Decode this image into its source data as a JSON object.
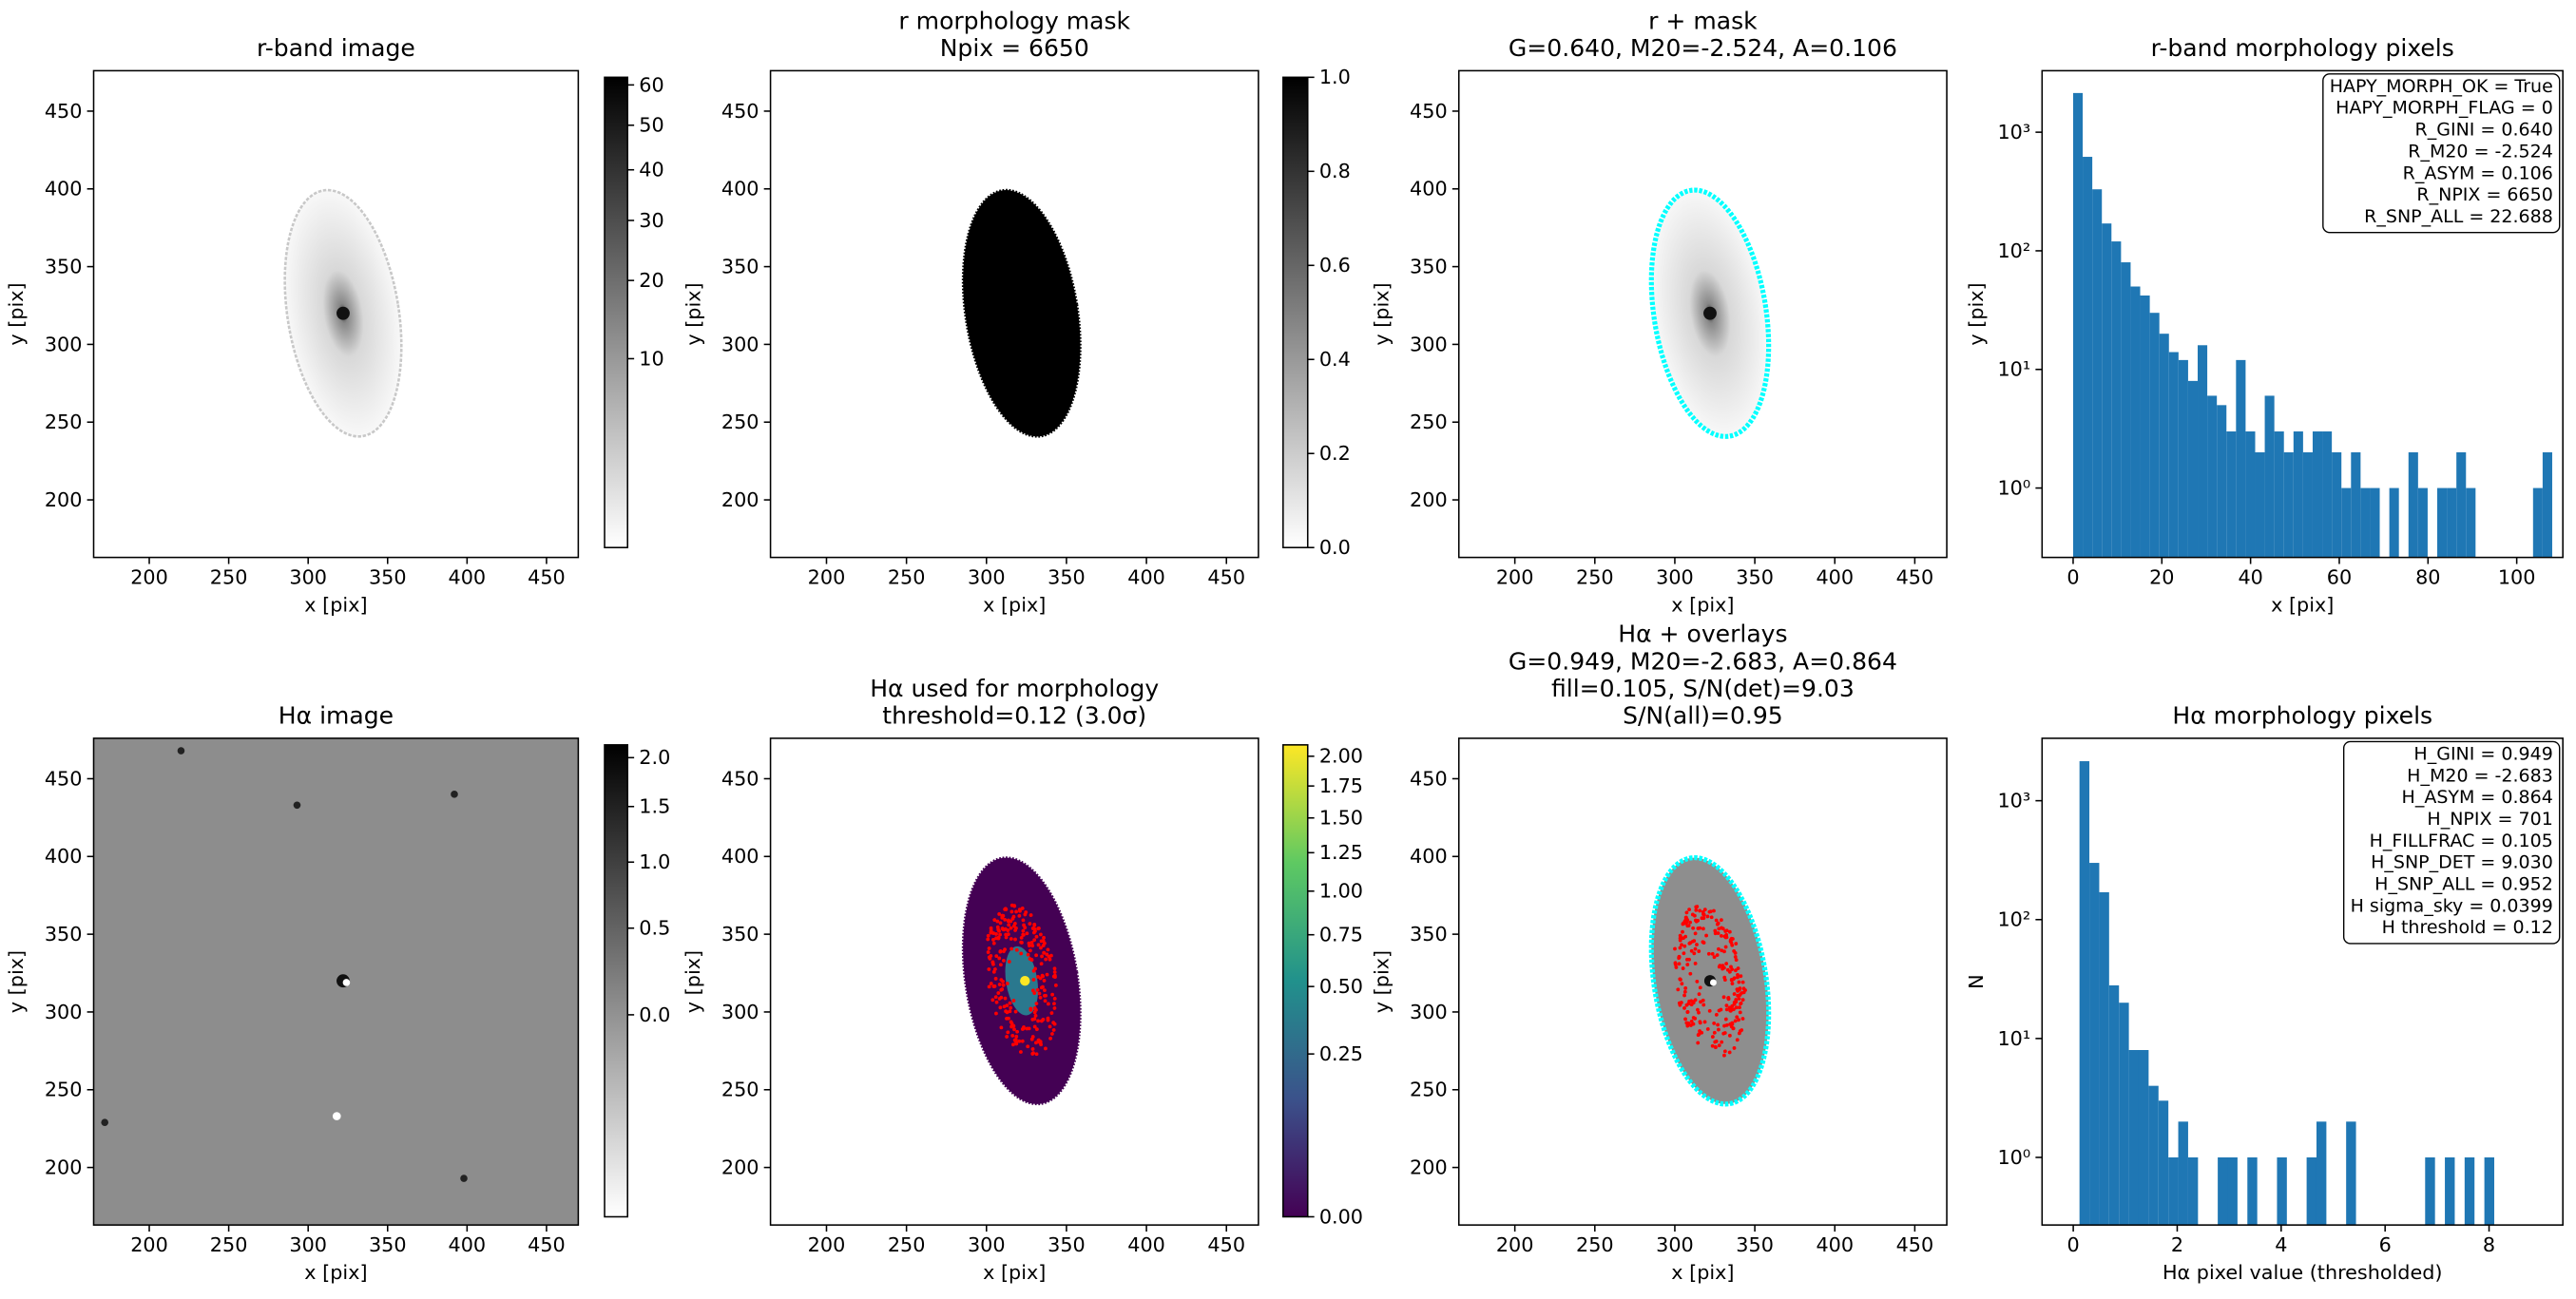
{
  "chart_data": [
    {
      "type": "image",
      "title": [
        "r-band image"
      ],
      "xlabel": "x [pix]",
      "ylabel": "y [pix]",
      "xlim": [
        165,
        470
      ],
      "ylim": [
        163,
        476
      ],
      "xticks": [
        200,
        250,
        300,
        350,
        400,
        450
      ],
      "yticks": [
        200,
        250,
        300,
        350,
        400,
        450
      ],
      "cmap": "gray_r",
      "cscale": "sqrt",
      "clim": [
        0,
        62
      ],
      "cticks": [
        10,
        20,
        30,
        40,
        50,
        60
      ]
    },
    {
      "type": "image",
      "title": [
        "r morphology mask",
        "Npix = 6650"
      ],
      "xlabel": "x [pix]",
      "ylabel": "y [pix]",
      "xlim": [
        165,
        470
      ],
      "ylim": [
        163,
        476
      ],
      "xticks": [
        200,
        250,
        300,
        350,
        400,
        450
      ],
      "yticks": [
        200,
        250,
        300,
        350,
        400,
        450
      ],
      "cmap": "gray_r",
      "cscale": "linear",
      "clim": [
        0,
        1
      ],
      "cticks": [
        {
          "value": 0,
          "label": "0.0"
        },
        0.2,
        0.4,
        0.6,
        0.8,
        {
          "value": 1,
          "label": "1.0"
        }
      ]
    },
    {
      "type": "image",
      "title": [
        "r + mask",
        "G=0.640, M20=-2.524, A=0.106"
      ],
      "xlabel": "x [pix]",
      "ylabel": "y [pix]",
      "xlim": [
        165,
        470
      ],
      "ylim": [
        163,
        476
      ],
      "xticks": [
        200,
        250,
        300,
        350,
        400,
        450
      ],
      "yticks": [
        200,
        250,
        300,
        350,
        400,
        450
      ]
    },
    {
      "type": "histogram",
      "title": [
        "r-band morphology pixels"
      ],
      "xlabel": "x [pix]",
      "ylabel": "y [pix]",
      "yscale": "log",
      "xlim": [
        -7,
        110.4
      ],
      "ylim": [
        0.26,
        3300
      ],
      "xticks": [
        0,
        20,
        40,
        60,
        80,
        100
      ],
      "yticks": [
        {
          "value": 1,
          "label": "10⁰"
        },
        {
          "value": 10,
          "label": "10¹"
        },
        {
          "value": 100,
          "label": "10²"
        },
        {
          "value": 1000,
          "label": "10³"
        }
      ],
      "color": "#1f77b4",
      "bins": [
        0,
        2.16,
        4.32,
        6.48,
        8.64,
        10.8,
        12.96,
        15.12,
        17.28,
        19.44,
        21.6,
        23.76,
        25.92,
        28.08,
        30.24,
        32.4,
        34.56,
        36.72,
        38.88,
        41.04,
        43.2,
        45.36,
        47.52,
        49.68,
        51.84,
        54,
        56.16,
        58.32,
        60.48,
        62.64,
        64.8,
        66.96,
        69.12,
        71.28,
        73.44,
        75.6,
        77.76,
        79.92,
        82.08,
        84.24,
        86.4,
        88.56,
        90.72,
        92.88,
        95.04,
        97.2,
        99.36,
        101.52,
        103.68,
        105.84,
        108
      ],
      "values": [
        2140,
        620,
        330,
        170,
        120,
        80,
        50,
        42,
        30,
        20,
        14,
        12,
        8,
        16,
        6,
        5,
        3,
        12,
        3,
        2,
        6,
        3,
        2,
        3,
        2,
        3,
        3,
        2,
        1,
        2,
        1,
        1,
        0,
        1,
        0,
        2,
        1,
        0,
        1,
        1,
        2,
        1,
        0,
        0,
        0,
        0,
        0,
        0,
        1,
        2
      ],
      "annotation": [
        "HAPY_MORPH_OK = True",
        "HAPY_MORPH_FLAG = 0",
        "R_GINI = 0.640",
        "R_M20 = -2.524",
        "R_ASYM = 0.106",
        "R_NPIX = 6650",
        "R_SNP_ALL = 22.688"
      ]
    },
    {
      "type": "image",
      "title": [
        "Hα image"
      ],
      "xlabel": "x [pix]",
      "ylabel": "y [pix]",
      "xlim": [
        165,
        470
      ],
      "ylim": [
        163,
        476
      ],
      "xticks": [
        200,
        250,
        300,
        350,
        400,
        450
      ],
      "yticks": [
        200,
        250,
        300,
        350,
        400,
        450
      ],
      "cmap": "gray_r",
      "cscale": "sqrt",
      "clim": [
        -0.48,
        2.14
      ],
      "cticks": [
        {
          "value": 0,
          "label": "0.0"
        },
        0.5,
        {
          "value": 1,
          "label": "1.0"
        },
        1.5,
        {
          "value": 2,
          "label": "2.0"
        }
      ]
    },
    {
      "type": "image",
      "title": [
        "Hα used for morphology",
        "threshold=0.12 (3.0σ)"
      ],
      "xlabel": "x [pix]",
      "ylabel": "y [pix]",
      "xlim": [
        165,
        470
      ],
      "ylim": [
        163,
        476
      ],
      "xticks": [
        200,
        250,
        300,
        350,
        400,
        450
      ],
      "yticks": [
        200,
        250,
        300,
        350,
        400,
        450
      ],
      "cmap": "viridis",
      "cscale": "sqrt",
      "clim": [
        0,
        2.1
      ],
      "cticks": [
        {
          "value": 0,
          "label": "0.00"
        },
        0.25,
        {
          "value": 0.5,
          "label": "0.50"
        },
        0.75,
        {
          "value": 1,
          "label": "1.00"
        },
        1.25,
        {
          "value": 1.5,
          "label": "1.50"
        },
        1.75,
        {
          "value": 2,
          "label": "2.00"
        }
      ]
    },
    {
      "type": "image",
      "title": [
        "Hα + overlays",
        "G=0.949, M20=-2.683, A=0.864",
        "fill=0.105, S/N(det)=9.03",
        "S/N(all)=0.95"
      ],
      "xlabel": "x [pix]",
      "ylabel": "y [pix]",
      "xlim": [
        165,
        470
      ],
      "ylim": [
        163,
        476
      ],
      "xticks": [
        200,
        250,
        300,
        350,
        400,
        450
      ],
      "yticks": [
        200,
        250,
        300,
        350,
        400,
        450
      ]
    },
    {
      "type": "histogram",
      "title": [
        "Hα morphology pixels"
      ],
      "xlabel": "Hα pixel value (thresholded)",
      "ylabel": "N",
      "yscale": "log",
      "xlim": [
        -0.6,
        9.42
      ],
      "ylim": [
        0.27,
        3350
      ],
      "xticks": [
        0,
        2,
        4,
        6,
        8
      ],
      "yticks": [
        {
          "value": 1,
          "label": "10⁰"
        },
        {
          "value": 10,
          "label": "10¹"
        },
        {
          "value": 100,
          "label": "10²"
        },
        {
          "value": 1000,
          "label": "10³"
        }
      ],
      "color": "#1f77b4",
      "bins": [
        0.12,
        0.31,
        0.5,
        0.69,
        0.88,
        1.07,
        1.26,
        1.45,
        1.64,
        1.83,
        2.02,
        2.21,
        2.4,
        2.59,
        2.78,
        2.97,
        3.16,
        3.35,
        3.54,
        3.73,
        3.92,
        4.11,
        4.3,
        4.49,
        4.68,
        4.87,
        5.06,
        5.25,
        5.44,
        5.63,
        5.82,
        6.01,
        6.2,
        6.39,
        6.58,
        6.77,
        6.96,
        7.15,
        7.34,
        7.53,
        7.72,
        7.91,
        8.1
      ],
      "values": [
        2150,
        300,
        170,
        28,
        20,
        8,
        8,
        4,
        3,
        1,
        2,
        1,
        0,
        0,
        1,
        1,
        0,
        1,
        0,
        0,
        1,
        0,
        0,
        1,
        2,
        0,
        0,
        2,
        0,
        0,
        0,
        0,
        0,
        0,
        0,
        1,
        0,
        1,
        0,
        1,
        0,
        1
      ],
      "annotation": [
        "H_GINI = 0.949",
        "H_M20 = -2.683",
        "H_ASYM = 0.864",
        "H_NPIX = 701",
        "H_FILLFRAC = 0.105",
        "H_SNP_DET = 9.030",
        "H_SNP_ALL = 0.952",
        "H sigma_sky = 0.0399",
        "H threshold = 0.12"
      ]
    }
  ]
}
